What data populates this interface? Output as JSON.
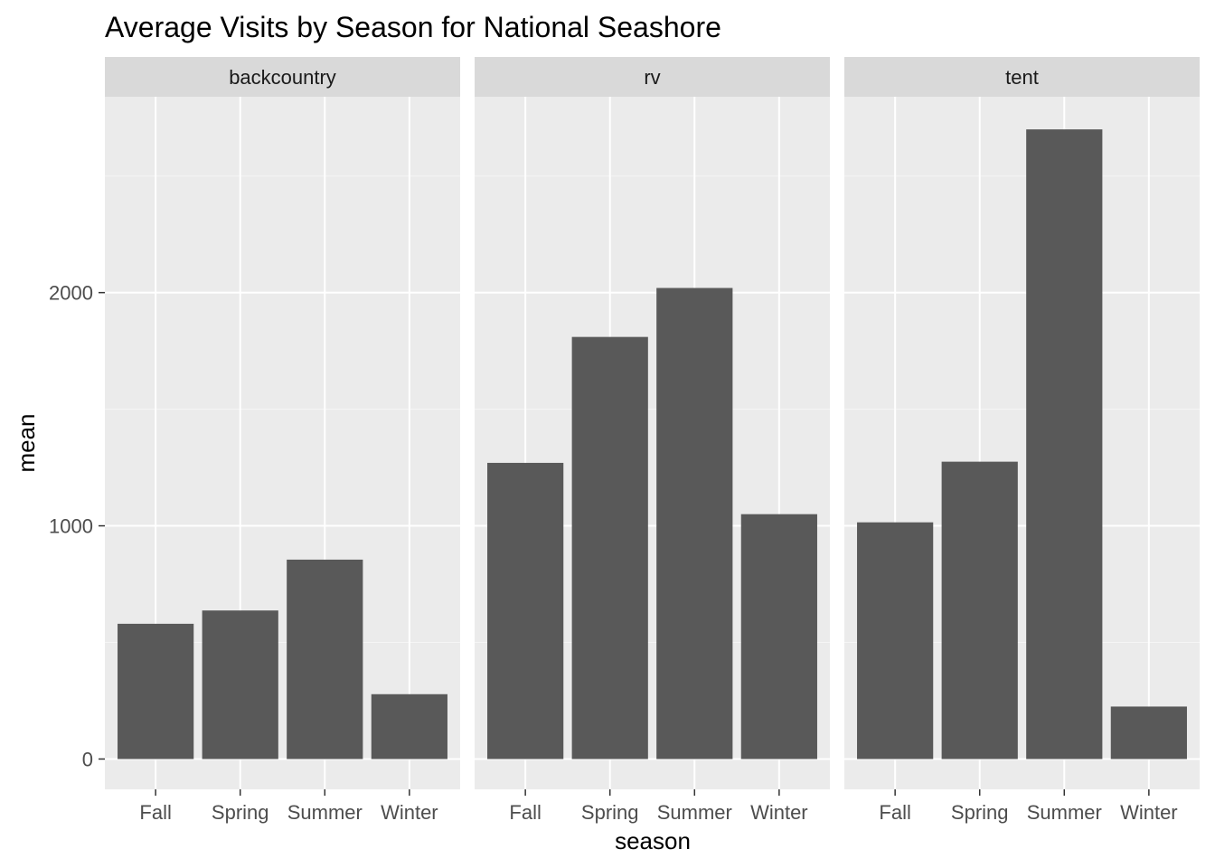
{
  "chart_data": {
    "type": "bar",
    "title": "Average Visits by Season for National Seashore",
    "xlabel": "season",
    "ylabel": "mean",
    "categories": [
      "Fall",
      "Spring",
      "Summer",
      "Winter"
    ],
    "facets": [
      {
        "name": "backcountry",
        "values": [
          580,
          637,
          855,
          278
        ]
      },
      {
        "name": "rv",
        "values": [
          1270,
          1810,
          2020,
          1050
        ]
      },
      {
        "name": "tent",
        "values": [
          1015,
          1275,
          2700,
          225
        ]
      }
    ],
    "y_ticks": [
      0,
      1000,
      2000
    ],
    "ylim": [
      -130,
      2840
    ],
    "grid": true,
    "colors": {
      "bar": "#595959",
      "panel": "#ebebeb",
      "strip": "#d9d9d9",
      "grid_major": "#ffffff",
      "grid_minor": "#f5f5f5"
    }
  }
}
